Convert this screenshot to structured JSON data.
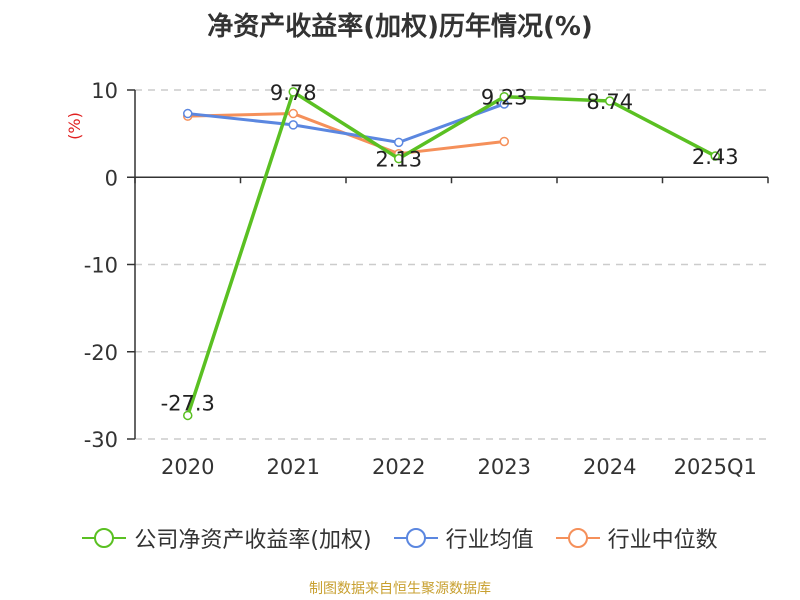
{
  "title": "净资产收益率(加权)历年情况(%)",
  "source": "制图数据来自恒生聚源数据库",
  "colors": {
    "company": "#5ac022",
    "industry_avg": "#5b87e0",
    "industry_median": "#f5905a",
    "unit_label": "#e02020",
    "source": "#c8a030"
  },
  "chart_data": {
    "type": "line",
    "title": "净资产收益率(加权)历年情况(%)",
    "ylabel": "(%)",
    "xlabel": "",
    "ylim": [
      -30,
      10
    ],
    "yticks": [
      10,
      0,
      -10,
      -20,
      -30
    ],
    "y_tick_labels": [
      "10",
      "0",
      "-10",
      "-20",
      "-30"
    ],
    "categories": [
      "2020",
      "2021",
      "2022",
      "2023",
      "2024",
      "2025Q1"
    ],
    "grid": true,
    "legend_position": "bottom",
    "series": [
      {
        "name": "公司净资产收益率(加权)",
        "color": "#5ac022",
        "values": [
          -27.3,
          9.78,
          2.13,
          9.23,
          8.74,
          2.43
        ],
        "labels": [
          "-27.3",
          "9.78",
          "2.13",
          "9.23",
          "8.74",
          "2.43"
        ]
      },
      {
        "name": "行业均值",
        "color": "#5b87e0",
        "values": [
          7.3,
          6.0,
          4.0,
          8.4,
          null,
          null
        ]
      },
      {
        "name": "行业中位数",
        "color": "#f5905a",
        "values": [
          7.0,
          7.3,
          2.7,
          4.1,
          null,
          null
        ]
      }
    ]
  }
}
